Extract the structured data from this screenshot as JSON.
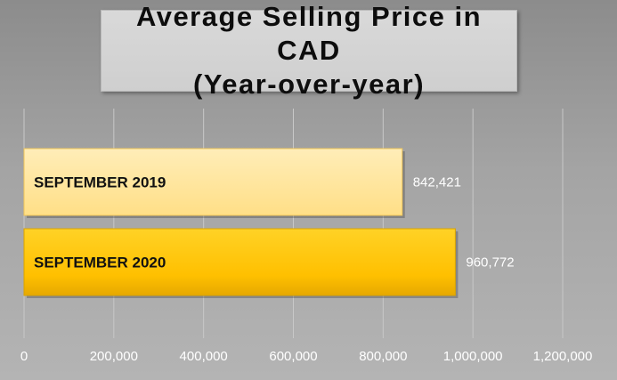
{
  "chart_data": {
    "type": "bar",
    "orientation": "horizontal",
    "title": "Average Selling Price in CAD",
    "subtitle": "(Year-over-year)",
    "categories": [
      "SEPTEMBER 2019",
      "SEPTEMBER 2020"
    ],
    "values": [
      842421,
      960772
    ],
    "value_labels": [
      "842,421",
      "960,772"
    ],
    "xlim": [
      0,
      1200000
    ],
    "x_ticks": [
      0,
      200000,
      400000,
      600000,
      800000,
      1000000,
      1200000
    ],
    "x_tick_labels": [
      "0",
      "200,000",
      "400,000",
      "600,000",
      "800,000",
      "1,000,000",
      "1,200,000"
    ],
    "grid": true,
    "legend": "none",
    "colors": {
      "SEPTEMBER 2019": "#ffe699",
      "SEPTEMBER 2020": "#ffc000"
    }
  }
}
